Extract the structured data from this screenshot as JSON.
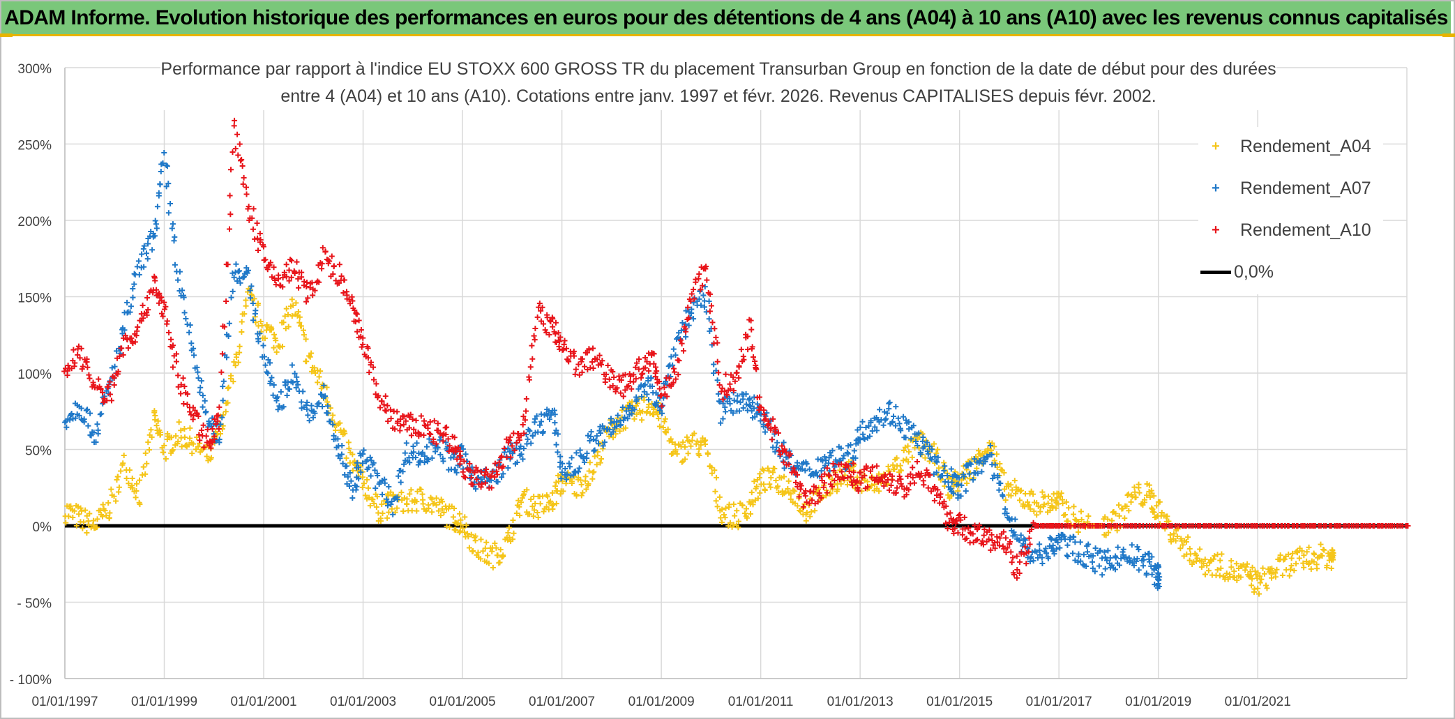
{
  "banner": {
    "title": "ADAM Informe. Evolution historique des performances en euros pour des détentions de 4 ans (A04) à 10 ans (A10) avec les revenus connus capitalisés"
  },
  "chart_data": {
    "type": "scatter",
    "title_line1": "Performance par rapport à l'indice EU STOXX 600 GROSS TR  du placement Transurban Group en fonction de la date de début pour des durées",
    "title_line2": "entre 4 (A04) et 10 ans (A10). Cotations entre janv. 1997 et févr. 2026. Revenus CAPITALISES depuis févr. 2002.",
    "xlabel": "",
    "ylabel": "",
    "xlim": [
      1997.0,
      2024.0
    ],
    "ylim": [
      -100,
      300
    ],
    "y_ticks": [
      300,
      250,
      200,
      150,
      100,
      50,
      0,
      -50,
      -100
    ],
    "y_tick_labels": [
      "300%",
      "250%",
      "200%",
      "150%",
      "100%",
      "50%",
      "0%",
      "- 50%",
      "- 100%"
    ],
    "x_ticks": [
      1997,
      1999,
      2001,
      2003,
      2005,
      2007,
      2009,
      2011,
      2013,
      2015,
      2017,
      2019,
      2021
    ],
    "x_tick_labels": [
      "01/01/1997",
      "01/01/1999",
      "01/01/2001",
      "01/01/2003",
      "01/01/2005",
      "01/01/2007",
      "01/01/2009",
      "01/01/2011",
      "01/01/2013",
      "01/01/2015",
      "01/01/2017",
      "01/01/2019",
      "01/01/2021"
    ],
    "legend_position": "top-right",
    "series": [
      {
        "name": "Rendement_A04",
        "color": "#f5c518",
        "x": [
          1997.0,
          1997.3,
          1997.6,
          1997.9,
          1998.2,
          1998.5,
          1998.8,
          1999.0,
          1999.3,
          1999.6,
          1999.9,
          2000.1,
          2000.4,
          2000.7,
          2001.0,
          2001.3,
          2001.6,
          2001.9,
          2002.2,
          2002.5,
          2002.8,
          2003.0,
          2003.3,
          2003.6,
          2003.9,
          2004.2,
          2004.5,
          2004.8,
          2005.0,
          2005.3,
          2005.6,
          2005.9,
          2006.2,
          2006.5,
          2006.8,
          2007.0,
          2007.3,
          2007.6,
          2007.9,
          2008.2,
          2008.5,
          2008.8,
          2009.0,
          2009.3,
          2009.6,
          2009.9,
          2010.2,
          2010.5,
          2010.8,
          2011.0,
          2011.3,
          2011.6,
          2011.9,
          2012.2,
          2012.5,
          2012.8,
          2013.0,
          2013.3,
          2013.6,
          2013.9,
          2014.2,
          2014.5,
          2014.8,
          2015.0,
          2015.3,
          2015.6,
          2015.9,
          2016.2,
          2016.5,
          2016.8,
          2017.0,
          2017.3,
          2017.6,
          2017.9,
          2018.2,
          2018.5,
          2018.8,
          2019.0,
          2019.3,
          2019.6,
          2019.9,
          2020.2,
          2020.5,
          2020.8,
          2021.0,
          2021.3,
          2021.6,
          2021.9,
          2022.2,
          2022.5
        ],
        "values": [
          10,
          5,
          0,
          12,
          40,
          20,
          70,
          50,
          60,
          55,
          45,
          60,
          100,
          150,
          130,
          120,
          145,
          110,
          90,
          65,
          40,
          30,
          10,
          15,
          15,
          18,
          12,
          5,
          2,
          -15,
          -20,
          -12,
          18,
          12,
          15,
          30,
          25,
          35,
          60,
          70,
          75,
          80,
          70,
          45,
          55,
          50,
          10,
          5,
          15,
          30,
          30,
          25,
          10,
          20,
          30,
          35,
          30,
          25,
          35,
          45,
          55,
          45,
          25,
          30,
          40,
          55,
          25,
          20,
          15,
          15,
          15,
          5,
          0,
          0,
          5,
          20,
          20,
          10,
          -5,
          -15,
          -25,
          -25,
          -30,
          -32,
          -38,
          -30,
          -25,
          -22,
          -20,
          -20
        ]
      },
      {
        "name": "Rendement_A07",
        "color": "#1f78c8",
        "x": [
          1997.0,
          1997.3,
          1997.6,
          1997.9,
          1998.2,
          1998.5,
          1998.8,
          1999.0,
          1999.3,
          1999.6,
          1999.9,
          2000.1,
          2000.4,
          2000.7,
          2001.0,
          2001.3,
          2001.6,
          2001.9,
          2002.2,
          2002.5,
          2002.8,
          2003.0,
          2003.3,
          2003.6,
          2003.9,
          2004.2,
          2004.5,
          2004.8,
          2005.0,
          2005.3,
          2005.6,
          2005.9,
          2006.2,
          2006.5,
          2006.8,
          2007.0,
          2007.3,
          2007.6,
          2007.9,
          2008.2,
          2008.5,
          2008.8,
          2009.0,
          2009.3,
          2009.6,
          2009.9,
          2010.2,
          2010.5,
          2010.8,
          2011.0,
          2011.3,
          2011.6,
          2011.9,
          2012.2,
          2012.5,
          2012.8,
          2013.0,
          2013.3,
          2013.6,
          2013.9,
          2014.2,
          2014.5,
          2014.8,
          2015.0,
          2015.3,
          2015.6,
          2015.9,
          2016.2,
          2016.5,
          2016.8,
          2017.0,
          2017.3,
          2017.6,
          2017.9,
          2018.2,
          2018.5,
          2018.8,
          2019.0
        ],
        "values": [
          70,
          80,
          60,
          90,
          130,
          170,
          190,
          240,
          160,
          110,
          65,
          60,
          170,
          160,
          110,
          80,
          100,
          70,
          85,
          50,
          25,
          45,
          30,
          15,
          50,
          45,
          55,
          40,
          45,
          30,
          30,
          45,
          50,
          65,
          75,
          35,
          40,
          55,
          60,
          70,
          85,
          90,
          80,
          120,
          140,
          150,
          75,
          80,
          80,
          75,
          55,
          40,
          35,
          40,
          45,
          45,
          60,
          70,
          75,
          65,
          55,
          40,
          30,
          25,
          40,
          45,
          15,
          -10,
          -20,
          -15,
          -10,
          -15,
          -20,
          -25,
          -20,
          -20,
          -25,
          -33
        ]
      },
      {
        "name": "Rendement_A10",
        "color": "#e8141a",
        "x": [
          1997.0,
          1997.3,
          1997.6,
          1997.9,
          1998.2,
          1998.5,
          1998.8,
          1999.0,
          1999.3,
          1999.6,
          1999.9,
          2000.1,
          2000.4,
          2000.7,
          2001.0,
          2001.3,
          2001.6,
          2001.9,
          2002.2,
          2002.5,
          2002.8,
          2003.0,
          2003.3,
          2003.6,
          2003.9,
          2004.2,
          2004.5,
          2004.8,
          2005.0,
          2005.3,
          2005.6,
          2005.9,
          2006.2,
          2006.5,
          2006.8,
          2007.0,
          2007.3,
          2007.6,
          2007.9,
          2008.2,
          2008.5,
          2008.8,
          2009.0,
          2009.3,
          2009.6,
          2009.9,
          2010.2,
          2010.5,
          2010.8,
          2011.0,
          2011.3,
          2011.6,
          2011.9,
          2012.2,
          2012.5,
          2012.8,
          2013.0,
          2013.3,
          2013.6,
          2013.9,
          2014.2,
          2014.5,
          2014.8,
          2015.0,
          2015.3,
          2015.6,
          2015.9,
          2016.2,
          2016.5,
          2016.8,
          2017.0,
          2017.5,
          2018.0,
          2018.5,
          2019.0,
          2019.5,
          2020.0,
          2020.5,
          2021.0,
          2021.5,
          2022.0,
          2022.5,
          2023.0,
          2023.5,
          2024.0
        ],
        "values": [
          100,
          115,
          90,
          85,
          120,
          130,
          160,
          140,
          95,
          70,
          55,
          70,
          260,
          210,
          175,
          160,
          170,
          150,
          175,
          165,
          140,
          120,
          85,
          70,
          65,
          65,
          60,
          55,
          40,
          30,
          30,
          50,
          60,
          140,
          130,
          120,
          105,
          110,
          100,
          90,
          100,
          110,
          85,
          100,
          150,
          170,
          90,
          95,
          130,
          75,
          60,
          40,
          15,
          25,
          35,
          35,
          30,
          35,
          30,
          25,
          40,
          20,
          5,
          0,
          -5,
          -10,
          -10,
          -30,
          0,
          0,
          0,
          0,
          0,
          0,
          0,
          0,
          0,
          0,
          0,
          0,
          0,
          0,
          0,
          0,
          0
        ]
      },
      {
        "name": "0,0%",
        "color": "#000000",
        "x": [
          1997.0,
          2024.0
        ],
        "values": [
          0,
          0
        ]
      }
    ]
  }
}
